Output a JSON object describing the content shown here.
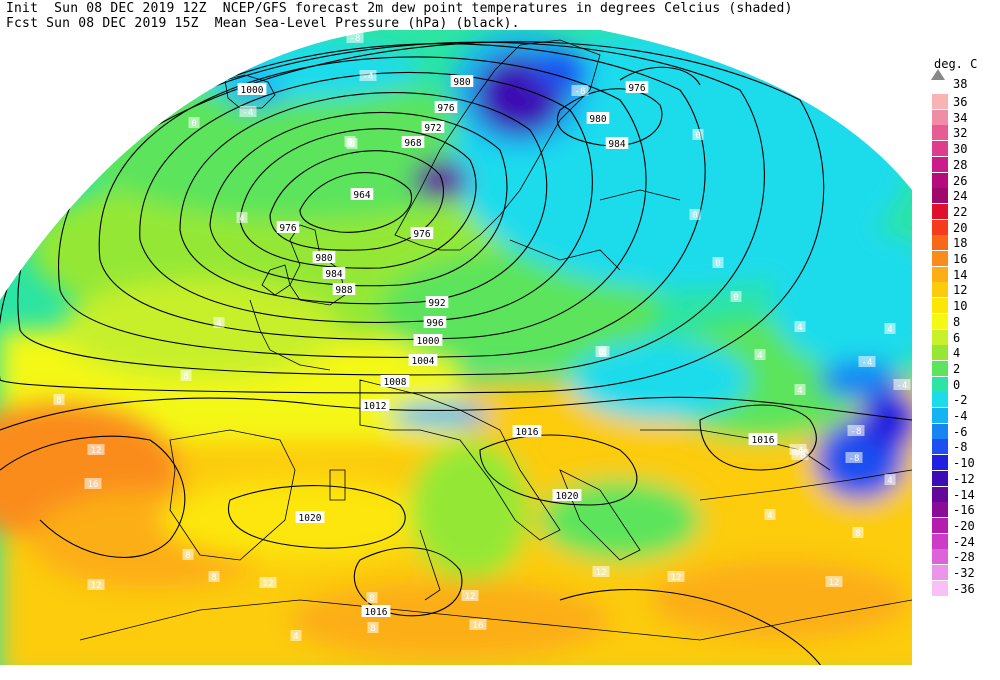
{
  "header": {
    "line1": "Init  Sun 08 DEC 2019 12Z  NCEP/GFS forecast 2m dew point temperatures in degrees Celcius (shaded)",
    "line2": "Fcst Sun 08 DEC 2019 15Z  Mean Sea-Level Pressure (hPa) (black)."
  },
  "legend": {
    "title": "deg. C",
    "top_label": "38",
    "items": [
      {
        "label": "36",
        "color": "#f8b4b4"
      },
      {
        "label": "34",
        "color": "#f08ca8"
      },
      {
        "label": "32",
        "color": "#e85c94"
      },
      {
        "label": "30",
        "color": "#e03c8c"
      },
      {
        "label": "28",
        "color": "#cc1c8c"
      },
      {
        "label": "26",
        "color": "#b40c7c"
      },
      {
        "label": "24",
        "color": "#a0086c"
      },
      {
        "label": "22",
        "color": "#e0102c"
      },
      {
        "label": "20",
        "color": "#f43c1c"
      },
      {
        "label": "18",
        "color": "#f86818"
      },
      {
        "label": "16",
        "color": "#fa8c1c"
      },
      {
        "label": "14",
        "color": "#fcae14"
      },
      {
        "label": "12",
        "color": "#fccc0c"
      },
      {
        "label": "10",
        "color": "#fce608"
      },
      {
        "label": "8",
        "color": "#f4f814"
      },
      {
        "label": "6",
        "color": "#c8f02c"
      },
      {
        "label": "4",
        "color": "#94e834"
      },
      {
        "label": "2",
        "color": "#5ce45c"
      },
      {
        "label": "0",
        "color": "#2ce4a4"
      },
      {
        "label": "-2",
        "color": "#1cdcec"
      },
      {
        "label": "-4",
        "color": "#14b4f4"
      },
      {
        "label": "-6",
        "color": "#1884f4"
      },
      {
        "label": "-8",
        "color": "#1c50f0"
      },
      {
        "label": "-10",
        "color": "#2020e0"
      },
      {
        "label": "-12",
        "color": "#3c0cb4"
      },
      {
        "label": "-14",
        "color": "#64089c"
      },
      {
        "label": "-16",
        "color": "#880c98"
      },
      {
        "label": "-20",
        "color": "#b41cb0"
      },
      {
        "label": "-24",
        "color": "#cc3cc8"
      },
      {
        "label": "-28",
        "color": "#dc64d8"
      },
      {
        "label": "-32",
        "color": "#ec94e8"
      },
      {
        "label": "-36",
        "color": "#f8c0f4"
      }
    ]
  },
  "map": {
    "isobar_labels": [
      {
        "text": "1000"
      },
      {
        "text": "980"
      },
      {
        "text": "976"
      },
      {
        "text": "972"
      },
      {
        "text": "968"
      },
      {
        "text": "964"
      },
      {
        "text": "976"
      },
      {
        "text": "980"
      },
      {
        "text": "984"
      },
      {
        "text": "988"
      },
      {
        "text": "992"
      },
      {
        "text": "996"
      },
      {
        "text": "1000"
      },
      {
        "text": "1004"
      },
      {
        "text": "1008"
      },
      {
        "text": "1012"
      },
      {
        "text": "1016"
      },
      {
        "text": "1016"
      },
      {
        "text": "1020"
      },
      {
        "text": "1020"
      },
      {
        "text": "1016"
      },
      {
        "text": "980"
      },
      {
        "text": "984"
      },
      {
        "text": "976"
      },
      {
        "text": "976"
      }
    ],
    "dewpoint_labels": [
      {
        "text": "-4"
      },
      {
        "text": "-8"
      },
      {
        "text": "-4"
      },
      {
        "text": "-4"
      },
      {
        "text": "0"
      },
      {
        "text": "0"
      },
      {
        "text": "4"
      },
      {
        "text": "-8"
      },
      {
        "text": "0"
      },
      {
        "text": "0"
      },
      {
        "text": "0"
      },
      {
        "text": "0"
      },
      {
        "text": "4"
      },
      {
        "text": "4"
      },
      {
        "text": "-4"
      },
      {
        "text": "-4"
      },
      {
        "text": "4"
      },
      {
        "text": "-8"
      },
      {
        "text": "-4"
      },
      {
        "text": "-8"
      },
      {
        "text": "4"
      },
      {
        "text": "8"
      },
      {
        "text": "12"
      },
      {
        "text": "16"
      },
      {
        "text": "8"
      },
      {
        "text": "12"
      },
      {
        "text": "4"
      },
      {
        "text": "8"
      },
      {
        "text": "8"
      },
      {
        "text": "12"
      },
      {
        "text": "8"
      },
      {
        "text": "12"
      },
      {
        "text": "16"
      },
      {
        "text": "12"
      },
      {
        "text": "12"
      },
      {
        "text": "12"
      },
      {
        "text": "8"
      },
      {
        "text": "4"
      },
      {
        "text": "8"
      },
      {
        "text": "4"
      },
      {
        "text": "-8"
      },
      {
        "text": "4"
      },
      {
        "text": "0"
      },
      {
        "text": "0"
      },
      {
        "text": "8"
      }
    ]
  }
}
